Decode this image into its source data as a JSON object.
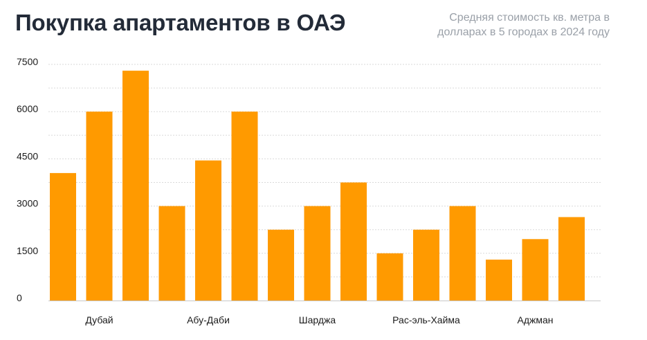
{
  "title": "Покупка апартаментов в ОАЭ",
  "subtitle": {
    "line1": "Средняя стоимость кв. метра в",
    "line2": "долларах в 5 городах в 2024 году"
  },
  "chart_data": {
    "type": "bar",
    "title": "Покупка апартаментов в ОАЭ",
    "subtitle": "Средняя стоимость кв. метра в долларах в 5 городах в 2024 году",
    "categories": [
      "Дубай",
      "Абу-Даби",
      "Шарджа",
      "Рас-эль-Хайма",
      "Аджман"
    ],
    "bars_per_category": 3,
    "values": [
      [
        4050,
        6000,
        7300
      ],
      [
        3000,
        4450,
        6000
      ],
      [
        2250,
        3000,
        3750
      ],
      [
        1500,
        2250,
        3000
      ],
      [
        1300,
        1950,
        2650
      ]
    ],
    "yticks": [
      0,
      1500,
      3000,
      4500,
      6000,
      7500
    ],
    "ylim": [
      0,
      7500
    ],
    "xlabel": "",
    "ylabel": "",
    "grid": true,
    "legend": "none",
    "bar_color": "#ff9a00",
    "grid_color": "#d9d9d9"
  }
}
